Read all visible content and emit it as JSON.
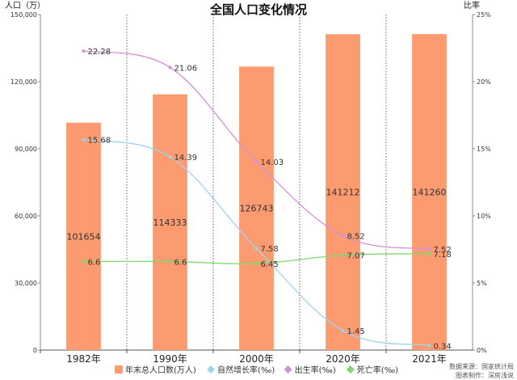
{
  "chart_data": {
    "type": "bar",
    "title": "全国人口变化情况",
    "ylabel_left": "人口（万）",
    "ylabel_right": "比率",
    "categories": [
      "1982年",
      "1990年",
      "2000年",
      "2020年",
      "2021年"
    ],
    "ylim_left": [
      0,
      150000
    ],
    "yticks_left": [
      "0",
      "30,000",
      "60,000",
      "90,000",
      "120,000",
      "150,000"
    ],
    "ylim_right": [
      0,
      25
    ],
    "yticks_right": [
      "0%",
      "5%",
      "10%",
      "15%",
      "20%",
      "25%"
    ],
    "bar_series": {
      "name": "年末总人口数(万人)",
      "values": [
        101654,
        114333,
        126743,
        141212,
        141260
      ],
      "labels": [
        "101654",
        "114333",
        "126743",
        "141212",
        "141260"
      ],
      "color": "#fc9a70"
    },
    "line_series": [
      {
        "name": "自然增长率(‰)",
        "values": [
          15.68,
          14.39,
          7.58,
          1.45,
          0.34
        ],
        "labels": [
          "15.68",
          "14.39",
          "7.58",
          "1.45",
          "0.34"
        ],
        "color": "#9fd3ec"
      },
      {
        "name": "出生率(‰)",
        "values": [
          22.28,
          21.06,
          14.03,
          8.52,
          7.52
        ],
        "labels": [
          "22.28",
          "21.06",
          "14.03",
          "8.52",
          "7.52"
        ],
        "color": "#d48fd9"
      },
      {
        "name": "死亡率(‰)",
        "values": [
          6.6,
          6.6,
          6.45,
          7.07,
          7.18
        ],
        "labels": [
          "6.6",
          "6.6",
          "6.45",
          "7.07",
          "7.18"
        ],
        "color": "#7dd86e"
      }
    ],
    "legend_position": "bottom",
    "grid": "vertical-dotted"
  },
  "source": {
    "line1": "数据来源：国家统计局",
    "line2": "图表制作：深房浅说"
  }
}
